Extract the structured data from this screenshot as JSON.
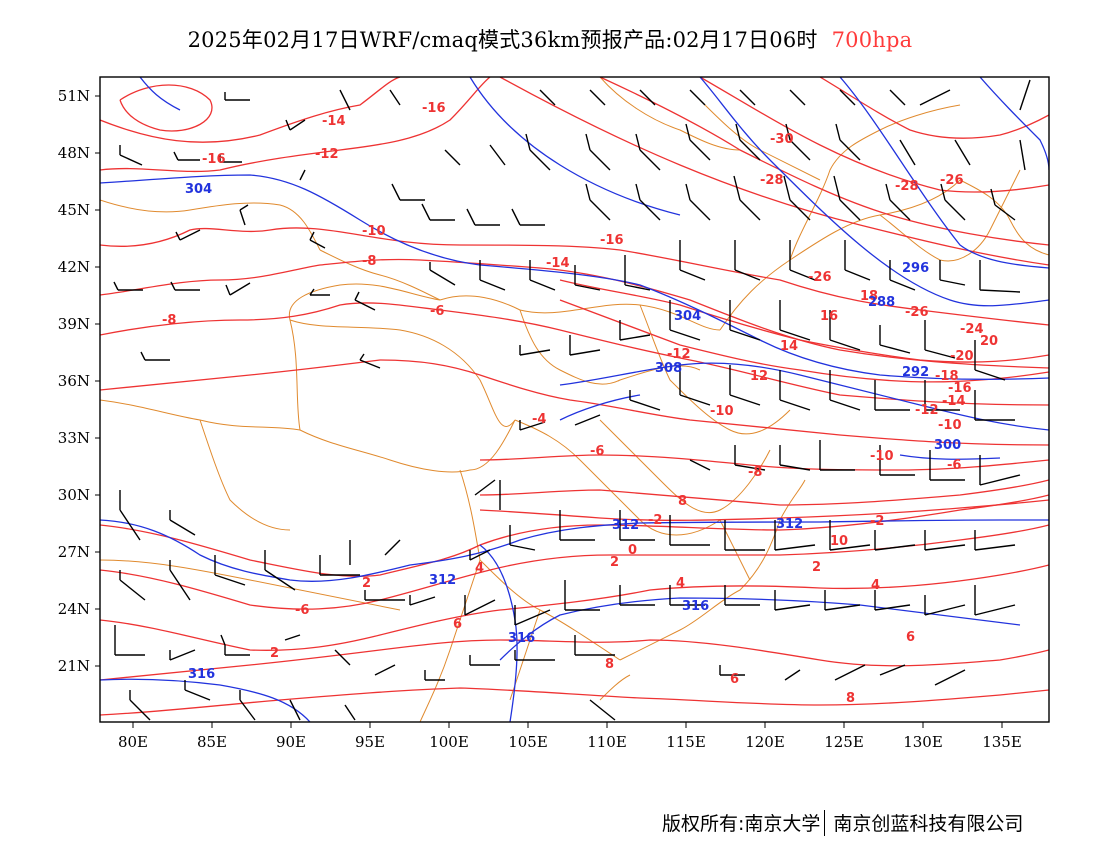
{
  "title": {
    "text": "2025年02月17日WRF/cmaq模式36km预报产品:02月17日06时",
    "level": "700hpa"
  },
  "colors": {
    "temperature": "#ee3333",
    "height": "#2233dd",
    "boundary": "#e08a2e",
    "wind": "#000000",
    "level_label": "#ff3b3b"
  },
  "footer": {
    "copyright": "版权所有:南京大学",
    "company": "南京创蓝科技有限公司"
  },
  "map": {
    "lat_labels": [
      "51N",
      "48N",
      "45N",
      "42N",
      "39N",
      "36N",
      "33N",
      "30N",
      "27N",
      "24N",
      "21N"
    ],
    "lon_labels": [
      "80E",
      "85E",
      "90E",
      "95E",
      "100E",
      "105E",
      "110E",
      "115E",
      "120E",
      "125E",
      "130E",
      "135E"
    ],
    "temperature_labels": [
      "-16",
      "-14",
      "-12",
      "-16",
      "-30",
      "-28",
      "-28",
      "-26",
      "-16",
      "-14",
      "-10",
      "-8",
      "-6",
      "-26",
      "-26",
      "-24",
      "-8",
      "-12",
      "-10",
      "-8",
      "-6",
      "-4",
      "-2",
      "0",
      "2",
      "4",
      "6",
      "8",
      "-2",
      "-20",
      "-18",
      "-16",
      "-14",
      "-10",
      "-6",
      "2",
      "2",
      "4",
      "6",
      "8",
      "-12",
      "-10",
      "-6",
      "2",
      "4",
      "6",
      "8",
      "10",
      "12",
      "14",
      "16",
      "18",
      "20"
    ],
    "height_labels": [
      "304",
      "296",
      "288",
      "304",
      "308",
      "312",
      "312",
      "312",
      "316",
      "316",
      "316",
      "300",
      "292"
    ]
  }
}
